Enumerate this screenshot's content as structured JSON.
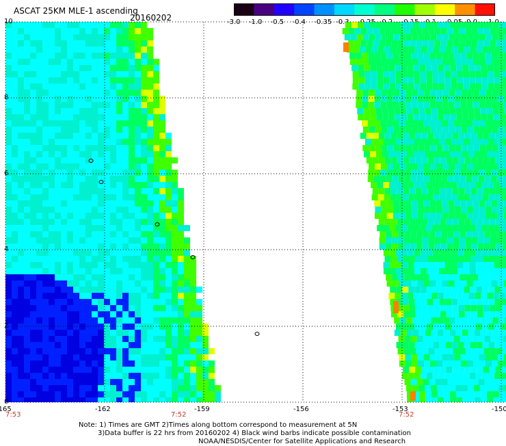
{
  "header": {
    "title": "ASCAT 25KM MLE-1 ascending",
    "date": "20160202"
  },
  "colorbar": {
    "labels": [
      "-3.0",
      "-1.0",
      "-0.5",
      "-0.4",
      "-0.35",
      "-0.3",
      "-0.25",
      "-0.2",
      "-0.15",
      "-0.1",
      "-0.05",
      "0.0",
      "1.0"
    ],
    "colors": [
      "#1a0014",
      "#4b0080",
      "#2200ff",
      "#0044ff",
      "#0090ff",
      "#00d8ff",
      "#00ffd0",
      "#00ff80",
      "#20ff00",
      "#a0ff00",
      "#ffff00",
      "#ff9000",
      "#ff1000"
    ]
  },
  "map": {
    "y_axis_labels": [
      "10",
      "8",
      "6",
      "4",
      "2",
      "0"
    ],
    "x_axis_labels": [
      "-165",
      "-162",
      "-159",
      "-156",
      "-153",
      "-150"
    ],
    "time_labels": [
      "7:53",
      "7:52",
      "7:52"
    ],
    "swath_colors": {
      "cyan": "#00ffff",
      "aqua": "#00f0d0",
      "green": "#00ff60",
      "lime": "#40ff00",
      "blue": "#0020ff",
      "deepblue": "#0000e0",
      "violet": "#3000c0",
      "yellow": "#e0ff00",
      "orange": "#ff8000",
      "land": "#000000",
      "grid": "#000000"
    }
  },
  "footer": {
    "line1": "Note: 1) Times are GMT 2)Times along bottom correspond to measurement at 5N",
    "line2": "3)Data buffer is 22 hrs from 20160202 4) Black wind barbs indicate possible contamination",
    "line3": "NOAA/NESDIS/Center for Satellite Applications and Research"
  }
}
